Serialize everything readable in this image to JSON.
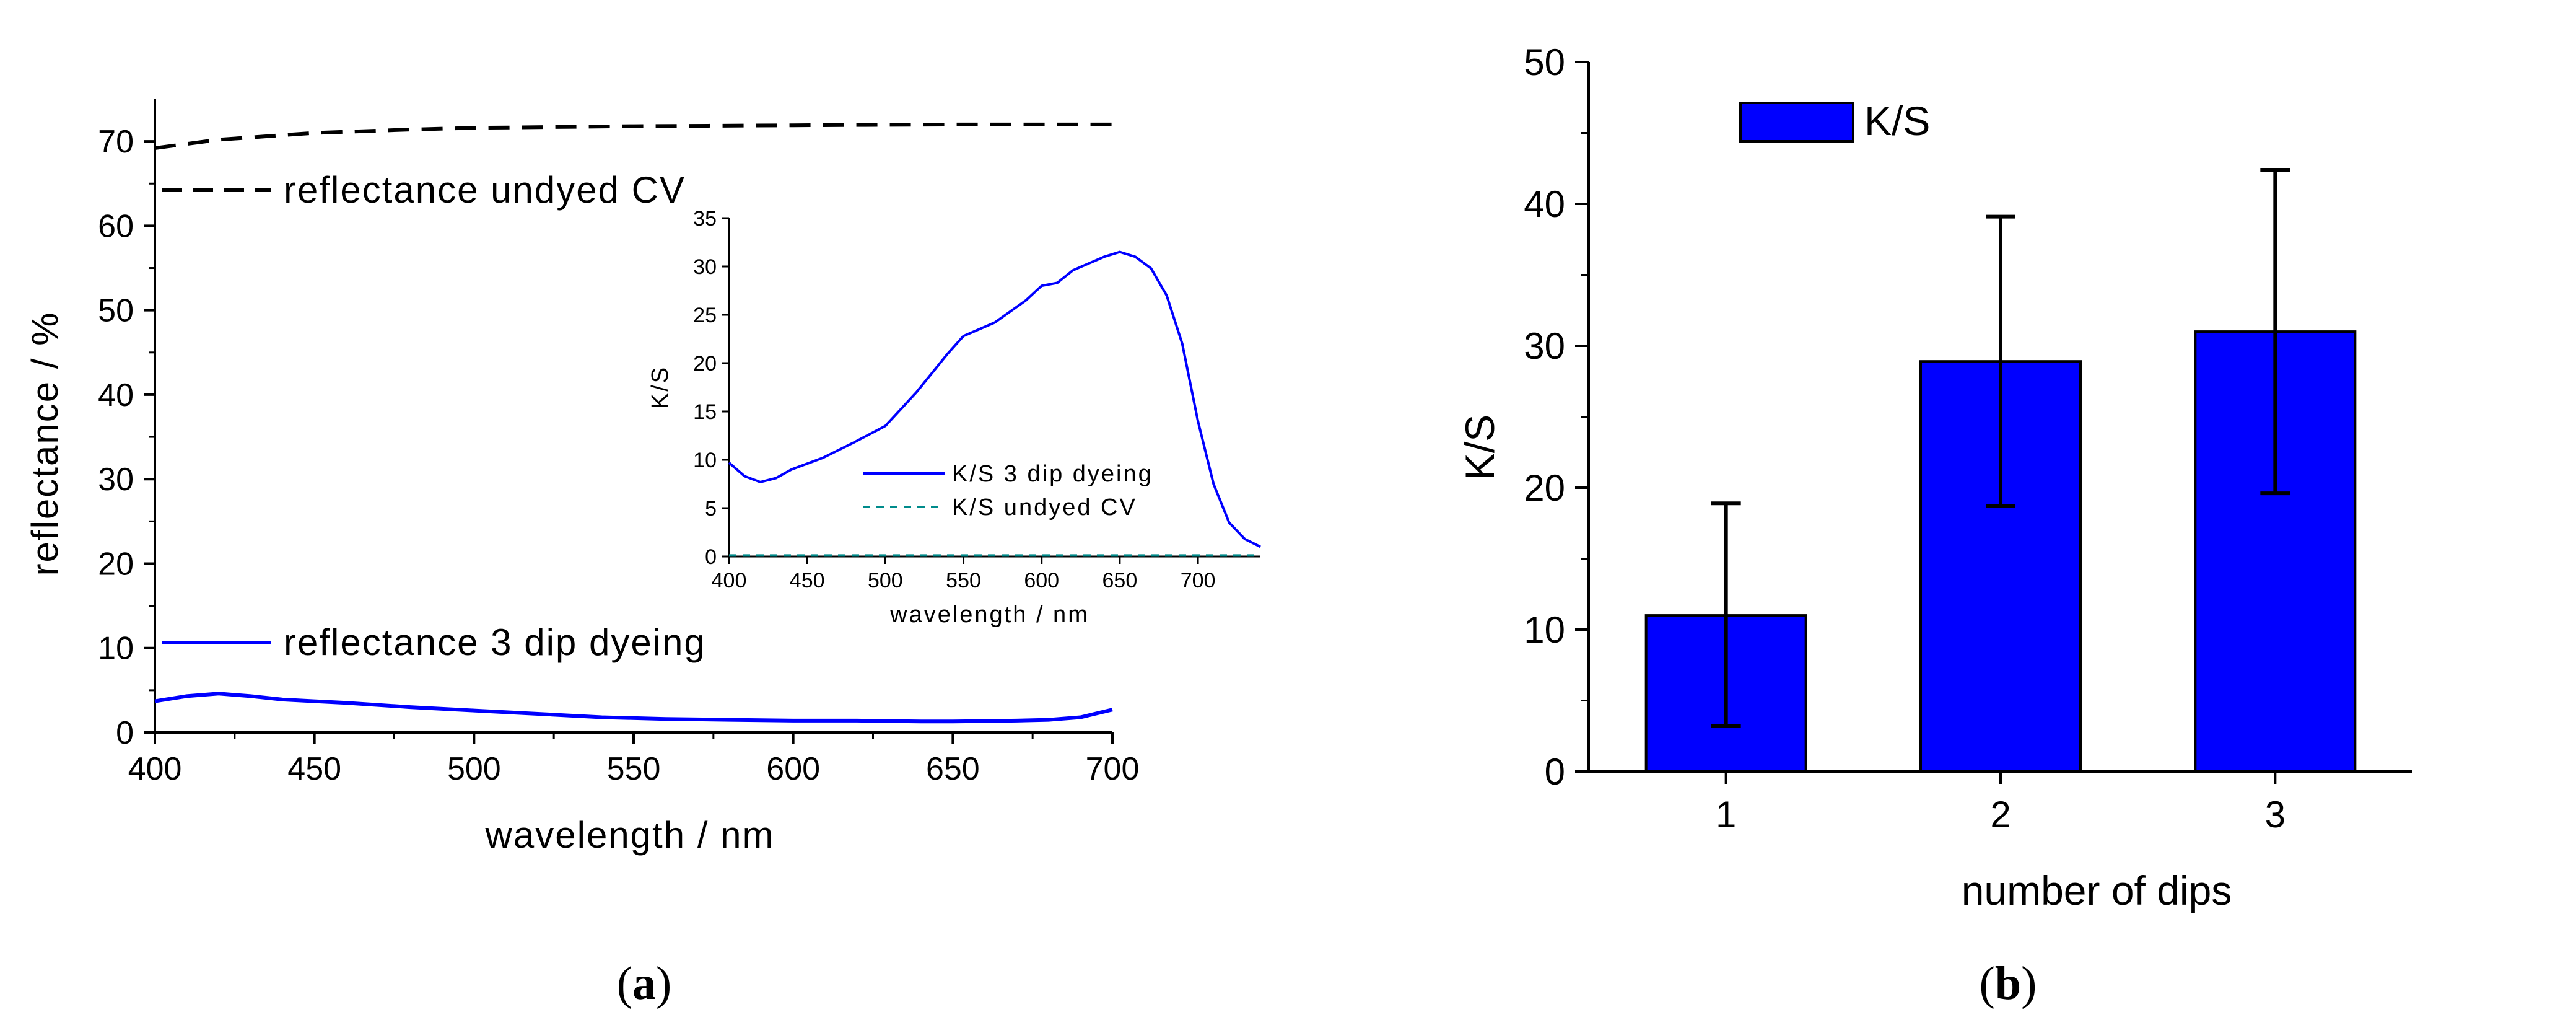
{
  "captions": {
    "a": "a",
    "b": "b"
  },
  "chart_data": [
    {
      "id": "a",
      "type": "line",
      "xlabel": "wavelength / nm",
      "ylabel": "reflectance / %",
      "xlim": [
        400,
        700
      ],
      "ylim": [
        0,
        75
      ],
      "xticks": [
        400,
        450,
        500,
        550,
        600,
        650,
        700
      ],
      "yticks": [
        0,
        10,
        20,
        30,
        40,
        50,
        60,
        70
      ],
      "series": [
        {
          "name": "reflectance undyed CV",
          "color": "#000000",
          "style": "dashed",
          "x": [
            400,
            420,
            450,
            480,
            500,
            550,
            600,
            650,
            700
          ],
          "y": [
            69.2,
            70.2,
            71.0,
            71.4,
            71.6,
            71.8,
            71.9,
            72.0,
            72.0
          ]
        },
        {
          "name": "reflectance 3 dip dyeing",
          "color": "#0000ff",
          "style": "solid",
          "x": [
            400,
            410,
            420,
            430,
            440,
            450,
            460,
            480,
            500,
            520,
            540,
            560,
            580,
            600,
            620,
            640,
            650,
            660,
            670,
            680,
            690,
            700
          ],
          "y": [
            3.7,
            4.3,
            4.6,
            4.3,
            3.9,
            3.7,
            3.5,
            3.0,
            2.6,
            2.2,
            1.8,
            1.6,
            1.5,
            1.4,
            1.4,
            1.3,
            1.3,
            1.35,
            1.4,
            1.5,
            1.8,
            2.7
          ]
        }
      ],
      "inset": {
        "type": "line",
        "xlabel": "wavelength / nm",
        "ylabel": "K/S",
        "xlim": [
          400,
          740
        ],
        "ylim": [
          0,
          35
        ],
        "xticks": [
          400,
          450,
          500,
          550,
          600,
          650,
          700
        ],
        "yticks": [
          0,
          5,
          10,
          15,
          20,
          25,
          30,
          35
        ],
        "series": [
          {
            "name": "K/S 3 dip dyeing",
            "color": "#0000ff",
            "style": "solid",
            "x": [
              400,
              410,
              420,
              430,
              440,
              460,
              480,
              500,
              520,
              540,
              550,
              570,
              590,
              600,
              610,
              620,
              640,
              650,
              660,
              670,
              680,
              690,
              700,
              710,
              720,
              730,
              740
            ],
            "y": [
              9.7,
              8.3,
              7.7,
              8.1,
              9.0,
              10.2,
              11.8,
              13.5,
              17.0,
              21.0,
              22.8,
              24.2,
              26.5,
              28.0,
              28.3,
              29.6,
              31.0,
              31.5,
              31.0,
              29.8,
              27.0,
              22.0,
              14.0,
              7.5,
              3.5,
              1.8,
              1.0
            ]
          },
          {
            "name": "K/S undyed CV",
            "color": "#008b8b",
            "style": "dashed",
            "x": [
              400,
              500,
              600,
              700,
              740
            ],
            "y": [
              0.1,
              0.1,
              0.1,
              0.1,
              0.1
            ]
          }
        ]
      }
    },
    {
      "id": "b",
      "type": "bar",
      "xlabel": "number of dips",
      "ylabel": "K/S",
      "categories": [
        "1",
        "2",
        "3"
      ],
      "ylim": [
        0,
        50
      ],
      "yticks": [
        0,
        10,
        20,
        30,
        40,
        50
      ],
      "series": [
        {
          "name": "K/S",
          "color": "#0000ff",
          "values": [
            11.0,
            28.9,
            31.0
          ],
          "error_low": [
            3.2,
            18.7,
            19.6
          ],
          "error_high": [
            18.9,
            39.1,
            42.4
          ]
        }
      ]
    }
  ]
}
